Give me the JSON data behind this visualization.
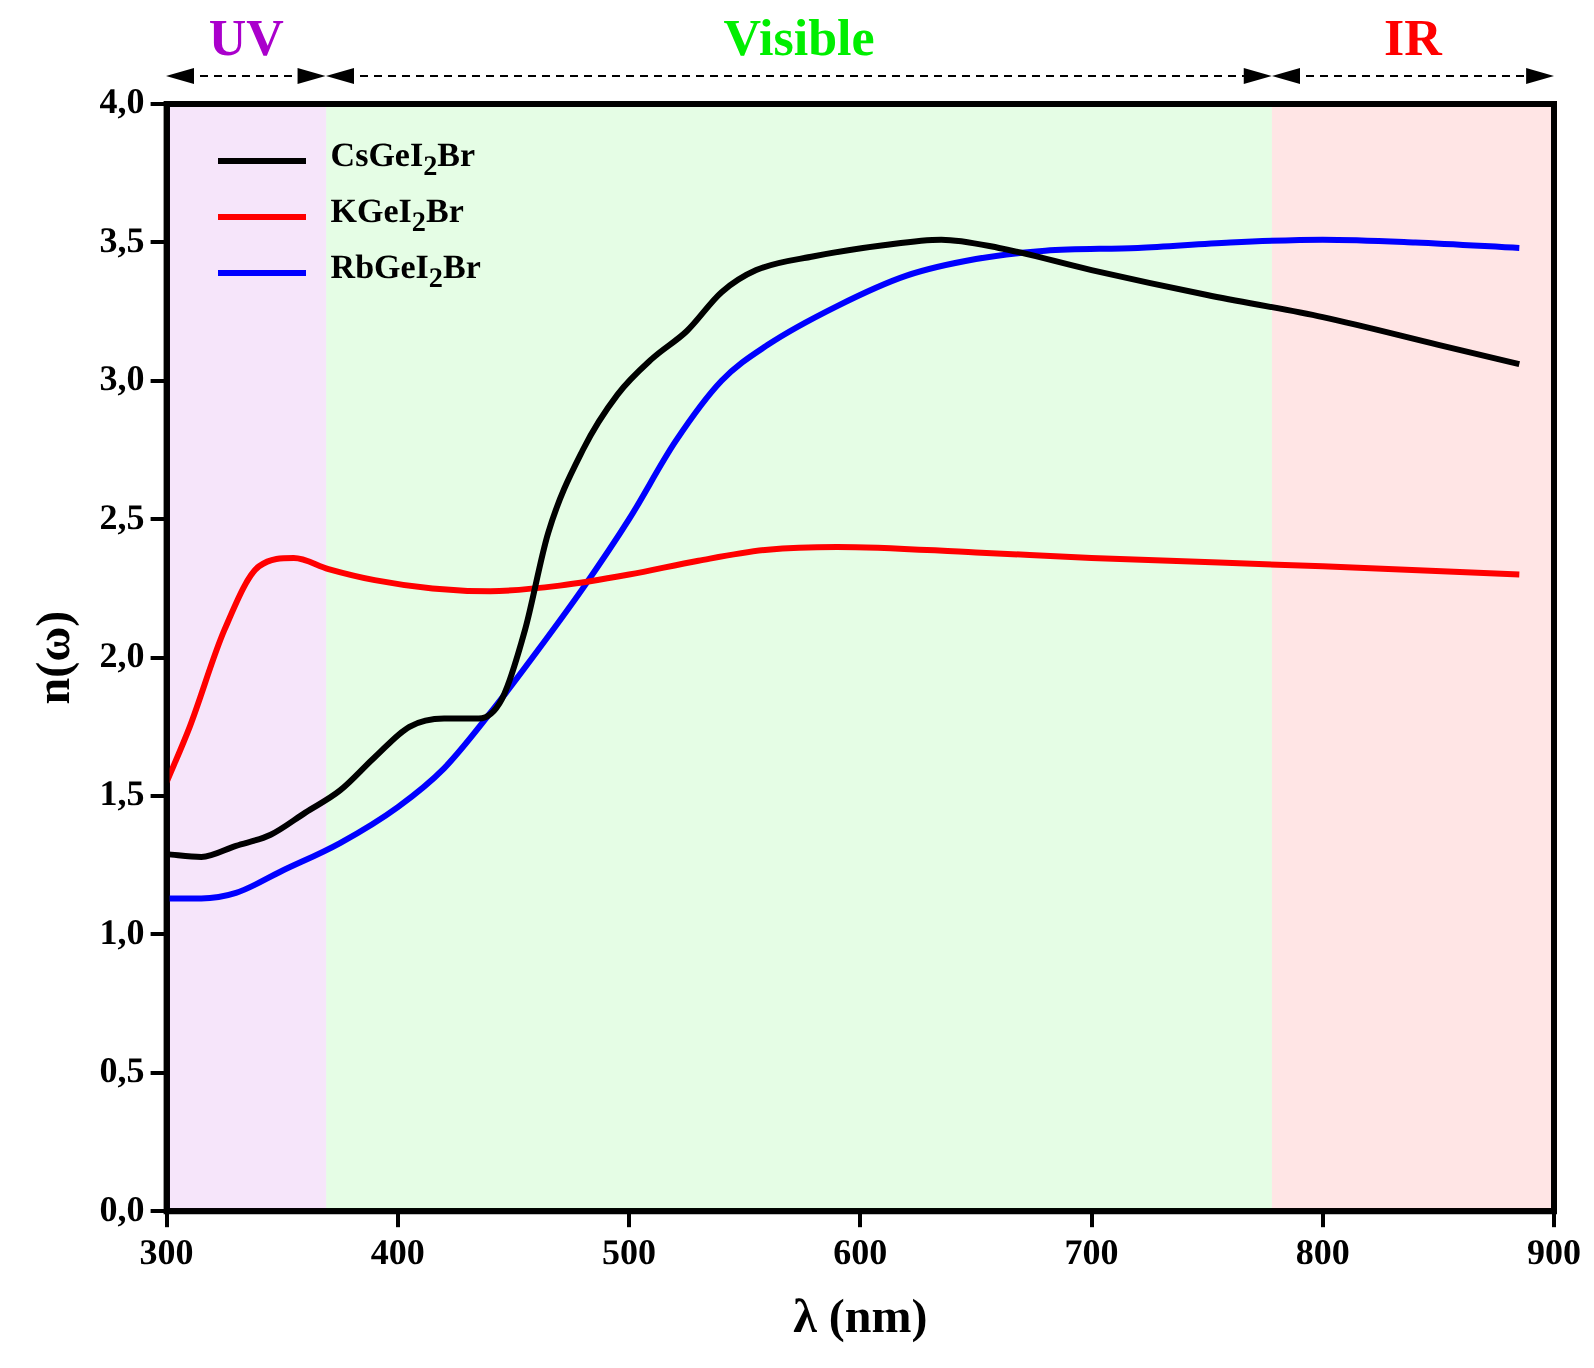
{
  "chart_data": {
    "type": "line",
    "xlabel": "λ (nm)",
    "ylabel": "n(ω)",
    "xlim": [
      300,
      900
    ],
    "xticks": [
      300,
      400,
      500,
      600,
      700,
      800,
      900
    ],
    "ylim": [
      0,
      4
    ],
    "yticks": [
      {
        "value": 0,
        "label": "0,0"
      },
      {
        "value": 0.5,
        "label": "0,5"
      },
      {
        "value": 1,
        "label": "1,0"
      },
      {
        "value": 1.5,
        "label": "1,5"
      },
      {
        "value": 2,
        "label": "2,0"
      },
      {
        "value": 2.5,
        "label": "2,5"
      },
      {
        "value": 3,
        "label": "3,0"
      },
      {
        "value": 3.5,
        "label": "3,5"
      },
      {
        "value": 4,
        "label": "4,0"
      }
    ],
    "grid": false,
    "legend": "top left",
    "marker": "none",
    "line_style": "solid",
    "bands": [
      {
        "axis": "x",
        "from": 300,
        "to": 369,
        "label": "UV",
        "color": "#aa00cc"
      },
      {
        "axis": "x",
        "from": 369,
        "to": 778,
        "label": "Visible",
        "color": "#00ee00"
      },
      {
        "axis": "x",
        "from": 778,
        "to": 900,
        "label": "IR",
        "color": "#ff0000"
      }
    ],
    "series": [
      {
        "name": "CsGeI$_{2}$Br",
        "color": "#000000",
        "x": [
          300,
          315,
          330,
          345,
          360,
          375,
          390,
          405,
          420,
          435,
          445,
          455,
          465,
          480,
          495,
          510,
          525,
          540,
          555,
          580,
          610,
          635,
          660,
          700,
          750,
          800,
          850,
          885
        ],
        "values": [
          1.29,
          1.28,
          1.32,
          1.36,
          1.44,
          1.52,
          1.64,
          1.75,
          1.78,
          1.78,
          1.85,
          2.1,
          2.45,
          2.75,
          2.95,
          3.08,
          3.18,
          3.32,
          3.4,
          3.45,
          3.49,
          3.51,
          3.48,
          3.4,
          3.31,
          3.23,
          3.13,
          3.06
        ]
      },
      {
        "name": "KGeI$_{2}$Br",
        "color": "#ff0000",
        "x": [
          300,
          310,
          325,
          340,
          355,
          370,
          390,
          415,
          440,
          470,
          500,
          530,
          560,
          590,
          650,
          700,
          800,
          885
        ],
        "values": [
          1.55,
          1.75,
          2.1,
          2.33,
          2.36,
          2.32,
          2.28,
          2.25,
          2.24,
          2.26,
          2.3,
          2.35,
          2.39,
          2.4,
          2.38,
          2.36,
          2.33,
          2.3
        ]
      },
      {
        "name": "RbGeI$_{2}$Br",
        "color": "#0000ff",
        "x": [
          300,
          315,
          330,
          350,
          375,
          400,
          420,
          440,
          460,
          480,
          500,
          520,
          540,
          560,
          590,
          620,
          650,
          680,
          720,
          760,
          800,
          840,
          885
        ],
        "values": [
          1.13,
          1.13,
          1.15,
          1.23,
          1.33,
          1.46,
          1.6,
          1.8,
          2.02,
          2.25,
          2.5,
          2.78,
          3.0,
          3.13,
          3.27,
          3.38,
          3.44,
          3.47,
          3.48,
          3.5,
          3.51,
          3.5,
          3.48
        ]
      }
    ]
  }
}
